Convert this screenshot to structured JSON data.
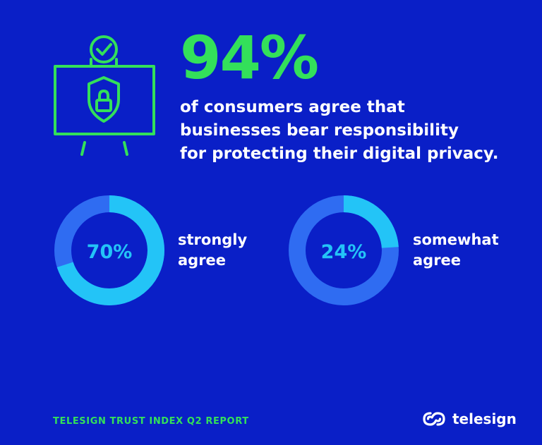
{
  "headline": "94%",
  "subtext": [
    "of consumers agree that",
    "businesses bear responsibility",
    "for protecting their digital privacy."
  ],
  "colors": {
    "background": "#0a1fc7",
    "accent_green": "#33e05a",
    "donut_track": "#2f6cf2",
    "donut_fill": "#23c4f7"
  },
  "chart_data": [
    {
      "type": "pie",
      "categories": [
        "strongly agree"
      ],
      "values": [
        70
      ],
      "center_label": "70%",
      "label_lines": [
        "strongly",
        "agree"
      ]
    },
    {
      "type": "pie",
      "categories": [
        "somewhat agree"
      ],
      "values": [
        24
      ],
      "center_label": "24%",
      "label_lines": [
        "somewhat",
        "agree"
      ]
    }
  ],
  "footer": {
    "report_title": "TELESIGN TRUST INDEX Q2 REPORT",
    "brand": "telesign"
  },
  "icons": {
    "main": "privacy-shield-board-icon",
    "logo": "telesign-logo-icon"
  }
}
